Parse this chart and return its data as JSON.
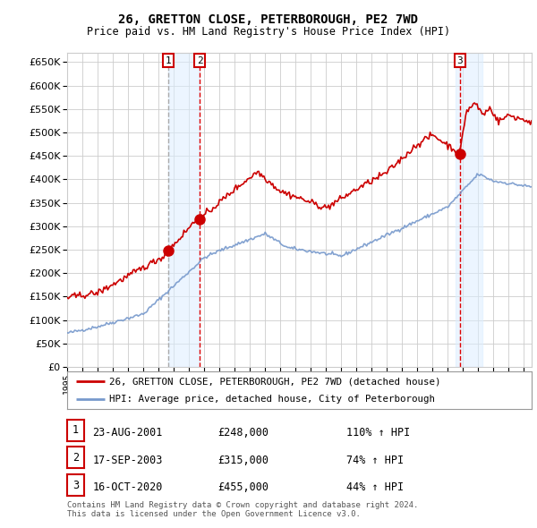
{
  "title": "26, GRETTON CLOSE, PETERBOROUGH, PE2 7WD",
  "subtitle": "Price paid vs. HM Land Registry's House Price Index (HPI)",
  "ylim": [
    0,
    670000
  ],
  "yticks": [
    0,
    50000,
    100000,
    150000,
    200000,
    250000,
    300000,
    350000,
    400000,
    450000,
    500000,
    550000,
    600000,
    650000
  ],
  "xlim_start": 1995.0,
  "xlim_end": 2025.5,
  "sale_dates": [
    2001.646,
    2003.714,
    2020.79
  ],
  "sale_prices": [
    248000,
    315000,
    455000
  ],
  "sale_labels": [
    "1",
    "2",
    "3"
  ],
  "vline1_color": "#aaaaaa",
  "vline1_style": "--",
  "vline23_color": "#dd0000",
  "vline23_style": "--",
  "vshade_color": "#ddeeff",
  "vshade_alpha": 0.55,
  "property_line_color": "#cc0000",
  "hpi_line_color": "#7799cc",
  "grid_color": "#cccccc",
  "background_color": "#ffffff",
  "legend_entries": [
    "26, GRETTON CLOSE, PETERBOROUGH, PE2 7WD (detached house)",
    "HPI: Average price, detached house, City of Peterborough"
  ],
  "table_rows": [
    [
      "1",
      "23-AUG-2001",
      "£248,000",
      "110% ↑ HPI"
    ],
    [
      "2",
      "17-SEP-2003",
      "£315,000",
      "74% ↑ HPI"
    ],
    [
      "3",
      "16-OCT-2020",
      "£455,000",
      "44% ↑ HPI"
    ]
  ],
  "footer": "Contains HM Land Registry data © Crown copyright and database right 2024.\nThis data is licensed under the Open Government Licence v3.0."
}
